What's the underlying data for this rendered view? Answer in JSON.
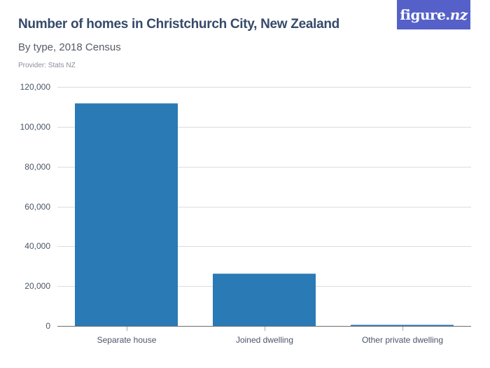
{
  "header": {
    "title": "Number of homes in Christchurch City, New Zealand",
    "subtitle": "By type, 2018 Census",
    "provider": "Provider: Stats NZ"
  },
  "logo": {
    "text_main": "figure.",
    "text_nz": "nz"
  },
  "colors": {
    "bar": "#2a7ab5",
    "logo_bg": "#5561c8",
    "title": "#364a6a"
  },
  "chart_data": {
    "type": "bar",
    "title": "Number of homes in Christchurch City, New Zealand",
    "subtitle": "By type, 2018 Census",
    "xlabel": "",
    "ylabel": "",
    "categories": [
      "Separate house",
      "Joined dwelling",
      "Other private dwelling"
    ],
    "values": [
      112000,
      26400,
      500
    ],
    "ylim": [
      0,
      120000
    ],
    "yticks": [
      0,
      20000,
      40000,
      60000,
      80000,
      100000,
      120000
    ],
    "ytick_labels": [
      "0",
      "20,000",
      "40,000",
      "60,000",
      "80,000",
      "100,000",
      "120,000"
    ],
    "grid": true,
    "legend": null
  }
}
